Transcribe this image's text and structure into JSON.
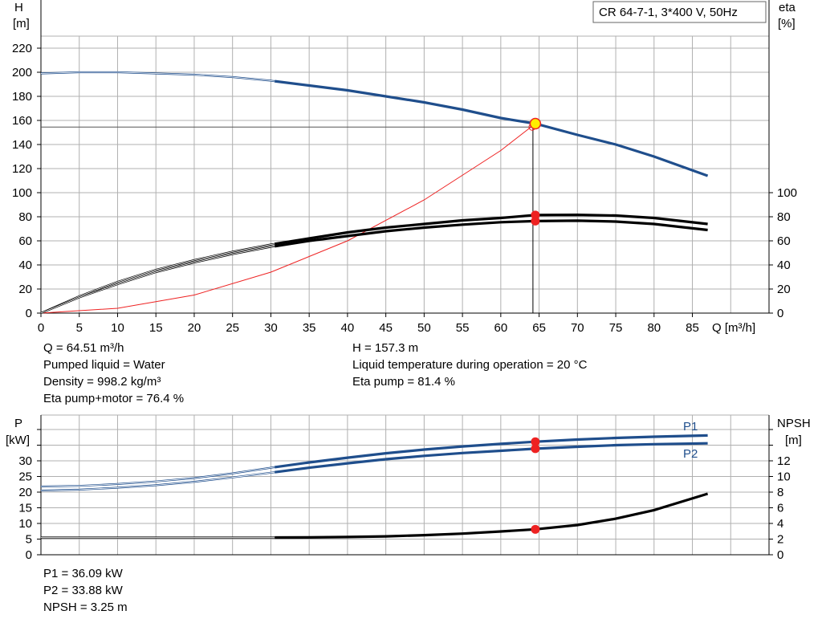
{
  "chart_data": [
    {
      "type": "line",
      "title": "CR 64-7-1, 3*400 V, 50Hz",
      "xlabel": "Q [m³/h]",
      "ylabel_left": "H",
      "ylabel_left_unit": "[m]",
      "ylabel_right": "eta",
      "ylabel_right_unit": "[%]",
      "xlim": [
        0,
        95
      ],
      "ylim_left": [
        0,
        230
      ],
      "ylim_right": [
        0,
        100
      ],
      "xticks": [
        0,
        5,
        10,
        15,
        20,
        25,
        30,
        35,
        40,
        45,
        50,
        55,
        60,
        65,
        70,
        75,
        80,
        85
      ],
      "yticks_left": [
        0,
        20,
        40,
        60,
        80,
        100,
        120,
        140,
        160,
        180,
        200,
        220
      ],
      "yticks_right": [
        0,
        20,
        40,
        60,
        80,
        100
      ],
      "grid": true,
      "operating_point": {
        "q": 64.51,
        "h": 157.3,
        "eta_pump": 81.4,
        "eta_total": 76.4
      },
      "series": [
        {
          "name": "H",
          "color": "#1f4e8c",
          "thick_from_x": 30.5,
          "x": [
            0,
            5,
            10,
            15,
            20,
            25,
            30,
            35,
            40,
            45,
            50,
            55,
            60,
            64.51,
            70,
            75,
            80,
            87
          ],
          "y": [
            199,
            200,
            200,
            199,
            198,
            196,
            193,
            189,
            185,
            180,
            175,
            169,
            162,
            157.3,
            148,
            140,
            130,
            114
          ]
        },
        {
          "color": "#000000",
          "thick_from_x": 30.5,
          "x": [
            0,
            5,
            10,
            15,
            20,
            25,
            30,
            35,
            40,
            45,
            50,
            55,
            60,
            64.51,
            70,
            75,
            80,
            87
          ],
          "y": [
            0,
            14,
            26,
            36,
            44,
            51,
            57,
            62,
            67,
            71,
            74,
            77,
            79,
            81.4,
            81.6,
            81,
            79,
            74
          ]
        },
        {
          "color": "#000000",
          "thick_from_x": 30.5,
          "x": [
            0,
            5,
            10,
            15,
            20,
            25,
            30,
            35,
            40,
            45,
            50,
            55,
            60,
            64.51,
            70,
            75,
            80,
            87
          ],
          "y": [
            0,
            13,
            24,
            34,
            42,
            49,
            55,
            60,
            64,
            68,
            71,
            73.5,
            75.5,
            76.4,
            76.7,
            76,
            74,
            69
          ]
        },
        {
          "color": "#ee2222",
          "thin": true,
          "x": [
            0,
            10,
            20,
            30,
            40,
            50,
            60,
            64.51
          ],
          "y": [
            0,
            4,
            15,
            34,
            60,
            94,
            135,
            157.3
          ]
        }
      ]
    },
    {
      "type": "line",
      "ylabel_left": "P",
      "ylabel_left_unit": "[kW]",
      "ylabel_right": "NPSH",
      "ylabel_right_unit": "[m]",
      "xlim": [
        0,
        95
      ],
      "ylim_left": [
        0,
        40
      ],
      "ylim_right": [
        0,
        16
      ],
      "yticks_left": [
        0,
        5,
        10,
        15,
        20,
        25,
        30
      ],
      "yticks_right": [
        0,
        2,
        4,
        6,
        8,
        10,
        12
      ],
      "grid": true,
      "operating_point": {
        "q": 64.51,
        "p1": 36.09,
        "p2": 33.88,
        "npsh": 3.25
      },
      "series": [
        {
          "name": "P1",
          "color": "#1f4e8c",
          "thick_from_x": 30.5,
          "x": [
            0,
            5,
            10,
            15,
            20,
            25,
            30,
            35,
            40,
            45,
            50,
            55,
            60,
            64.51,
            70,
            75,
            80,
            87
          ],
          "y": [
            21.8,
            22,
            22.6,
            23.4,
            24.5,
            26,
            27.8,
            29.5,
            31,
            32.4,
            33.6,
            34.6,
            35.4,
            36.09,
            36.8,
            37.3,
            37.7,
            38.1
          ]
        },
        {
          "name": "P2",
          "color": "#1f4e8c",
          "thick_from_x": 30.5,
          "x": [
            0,
            5,
            10,
            15,
            20,
            25,
            30,
            35,
            40,
            45,
            50,
            55,
            60,
            64.51,
            70,
            75,
            80,
            87
          ],
          "y": [
            20.5,
            20.8,
            21.4,
            22.2,
            23.3,
            24.7,
            26.2,
            27.8,
            29.2,
            30.5,
            31.6,
            32.5,
            33.2,
            33.88,
            34.5,
            35,
            35.3,
            35.6
          ]
        },
        {
          "name": "NPSH",
          "color": "#000000",
          "thick_from_x": 30.5,
          "axis": "right",
          "x": [
            0,
            10,
            20,
            30,
            35,
            40,
            45,
            50,
            55,
            60,
            64.51,
            70,
            75,
            80,
            87
          ],
          "y": [
            2.2,
            2.2,
            2.2,
            2.2,
            2.22,
            2.27,
            2.35,
            2.5,
            2.7,
            2.97,
            3.25,
            3.8,
            4.6,
            5.7,
            7.8
          ]
        }
      ]
    }
  ],
  "info_top_left": [
    "Q = 64.51 m³/h",
    "Pumped liquid = Water",
    "Density = 998.2 kg/m³",
    "Eta pump+motor = 76.4 %"
  ],
  "info_top_right": [
    "H = 157.3 m",
    "Liquid temperature during operation = 20 °C",
    "Eta pump = 81.4 %"
  ],
  "info_bottom": [
    "P1 = 36.09 kW",
    "P2 = 33.88 kW",
    "NPSH = 3.25 m"
  ],
  "colors": {
    "grid": "#b0b0b0",
    "accent": "#1f4e8c",
    "operating_point": "#ee2222",
    "duty_marker": "#ffee00"
  }
}
